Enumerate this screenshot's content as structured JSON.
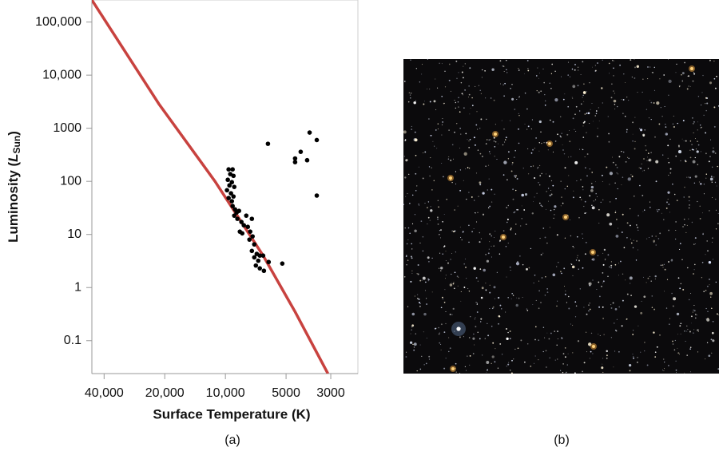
{
  "chart_data": {
    "type": "scatter",
    "x_label": "Surface Temperature (K)",
    "y_label": {
      "prefix": "Luminosity (",
      "symbol": "L",
      "subscript": "Sun",
      "suffix": ")"
    },
    "caption": "(a)",
    "log_x": true,
    "log_y": true,
    "x_reversed": true,
    "xlim": [
      46000,
      2200
    ],
    "ylim": [
      0.024,
      260000
    ],
    "xticks": [
      {
        "value": 40000,
        "label": "40,000"
      },
      {
        "value": 20000,
        "label": "20,000"
      },
      {
        "value": 10000,
        "label": "10,000"
      },
      5000,
      3000
    ],
    "yticks": [
      {
        "value": 100000,
        "label": "100,000"
      },
      {
        "value": 10000,
        "label": "10,000"
      },
      1000,
      100,
      10,
      1,
      0.1
    ],
    "color": "#000000",
    "x": [
      9640,
      9210,
      9460,
      9120,
      9730,
      9290,
      9550,
      9040,
      9820,
      9380,
      9120,
      9640,
      9290,
      9210,
      8960,
      8800,
      8560,
      9040,
      8720,
      8330,
      7880,
      7390,
      8100,
      7740,
      8480,
      7530,
      8250,
      7330,
      7600,
      7190,
      7390,
      6990,
      6750,
      7190,
      6870,
      6500,
      6100,
      7060,
      6750,
      6440,
      5220,
      6150,
      4510,
      4510,
      4230,
      3930,
      3820,
      3520,
      3520
    ],
    "values": [
      168,
      168,
      137,
      127,
      107,
      96.5,
      84,
      78.6,
      68,
      59.5,
      51.9,
      48.5,
      42.3,
      34.3,
      29.7,
      25.9,
      27.8,
      22.6,
      19.7,
      17.2,
      22.6,
      19.7,
      14.9,
      13.9,
      11.3,
      11.3,
      10.5,
      9.2,
      8.0,
      6.5,
      4.9,
      4.3,
      4.0,
      3.7,
      3.2,
      4.0,
      3.03,
      2.6,
      2.3,
      2.07,
      2.83,
      510,
      270,
      230,
      360,
      250,
      830,
      600,
      54
    ],
    "line": {
      "type": "line",
      "color": "#c8423f",
      "x": [
        46000,
        21400,
        11260,
        6500,
        4510,
        3100
      ],
      "values": [
        260000,
        2880,
        100,
        4.0,
        0.35,
        0.024
      ]
    }
  },
  "image": {
    "caption": "(b)"
  }
}
